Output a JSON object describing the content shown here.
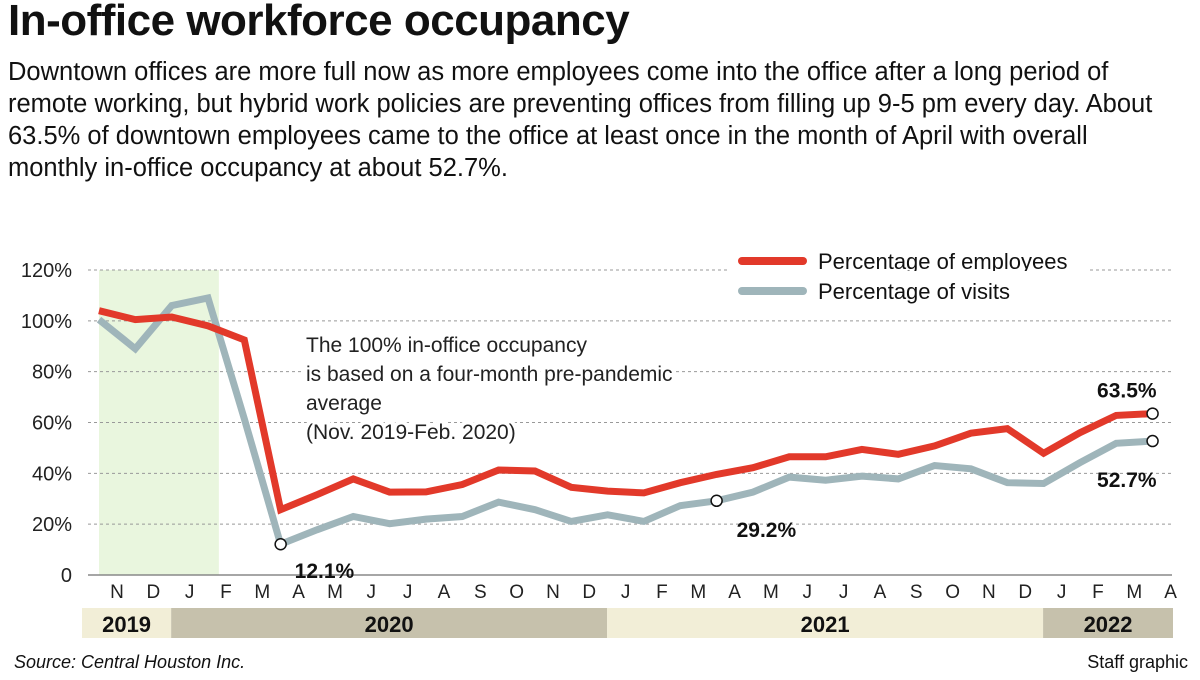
{
  "title": "In-office workforce occupancy",
  "subtitle": "Downtown offices are more full now as more employees come into the office after a long period of remote working, but hybrid work policies are preventing offices from filling up 9-5 pm every day. About 63.5% of downtown employees came to the office at least once in the month of April with overall monthly in-office occupancy at about 52.7%.",
  "source": "Source: Central Houston Inc.",
  "credit": "Staff graphic",
  "colors": {
    "employees": "#e2392a",
    "visits": "#9fb5ba",
    "baseline_shade": "#e9f6de",
    "year_light": "#f2eed7",
    "year_dark": "#c6c1ac"
  },
  "chart_data": {
    "type": "line",
    "ylim": [
      0,
      120
    ],
    "y_ticks": [
      "0",
      "20%",
      "40%",
      "60%",
      "80%",
      "100%",
      "120%"
    ],
    "y_tick_values": [
      0,
      20,
      40,
      60,
      80,
      100,
      120
    ],
    "grid": true,
    "legend_position": "top-right",
    "x": [
      "N",
      "D",
      "J",
      "F",
      "M",
      "A",
      "M",
      "J",
      "J",
      "A",
      "S",
      "O",
      "N",
      "D",
      "J",
      "F",
      "M",
      "A",
      "M",
      "J",
      "J",
      "A",
      "S",
      "O",
      "N",
      "D",
      "J",
      "F",
      "M",
      "A"
    ],
    "years": [
      {
        "label": "2019",
        "start": 0,
        "end": 1,
        "shade": "light"
      },
      {
        "label": "2020",
        "start": 2,
        "end": 13,
        "shade": "dark"
      },
      {
        "label": "2021",
        "start": 14,
        "end": 25,
        "shade": "light"
      },
      {
        "label": "2022",
        "start": 26,
        "end": 29,
        "shade": "dark"
      }
    ],
    "baseline_period": {
      "start": 0,
      "end": 3
    },
    "series": [
      {
        "name": "Percentage of employees",
        "color": "#e2392a",
        "values": [
          104,
          100.5,
          101.5,
          98,
          92.5,
          25.7,
          31.6,
          37.8,
          32.6,
          32.7,
          35.6,
          41.3,
          40.9,
          34.5,
          33,
          32.3,
          36.3,
          39.6,
          42.2,
          46.5,
          46.5,
          49.4,
          47.5,
          50.8,
          55.8,
          57.6,
          47.9,
          56,
          62.8,
          63.5
        ]
      },
      {
        "name": "Percentage of visits",
        "color": "#9fb5ba",
        "values": [
          100.5,
          89,
          106,
          109,
          61.5,
          12.1,
          17.8,
          23,
          20.2,
          22,
          23,
          28.7,
          25.7,
          21.1,
          23.7,
          21.1,
          27.3,
          29.2,
          32.6,
          38.5,
          37.3,
          38.9,
          37.8,
          43.1,
          41.8,
          36.3,
          36,
          44.2,
          51.8,
          52.7
        ]
      }
    ],
    "data_labels": [
      {
        "series": 1,
        "index": 5,
        "text": "12.1%"
      },
      {
        "series": 1,
        "index": 17,
        "text": "29.2%"
      },
      {
        "series": 0,
        "index": 29,
        "text": "63.5%"
      },
      {
        "series": 1,
        "index": 29,
        "text": "52.7%"
      }
    ],
    "annotation": [
      "The 100% in-office occupancy",
      "is based on a four-month pre-pandemic",
      "average",
      "(Nov. 2019-Feb. 2020)"
    ]
  }
}
